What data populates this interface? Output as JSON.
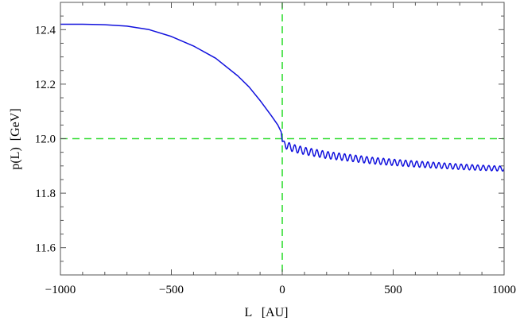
{
  "chart_data": {
    "type": "line",
    "xlabel": "L   [AU]",
    "ylabel": "p(L)  [GeV]",
    "xlim": [
      -1000,
      1000
    ],
    "ylim": [
      11.5,
      12.5
    ],
    "x_ticks": [
      -1000,
      -500,
      0,
      500,
      1000
    ],
    "x_tick_labels": [
      "−1000",
      "−500",
      "0",
      "500",
      "1000"
    ],
    "y_ticks": [
      11.6,
      11.8,
      12.0,
      12.2,
      12.4
    ],
    "y_tick_labels": [
      "11.6",
      "11.8",
      "12.0",
      "12.2",
      "12.4"
    ],
    "reference_lines": {
      "vertical_x": 0,
      "horizontal_y": 12.0,
      "color": "#33dd33",
      "style": "dashed"
    },
    "series": [
      {
        "color": "#1111dd",
        "points": [
          [
            -1000,
            12.42
          ],
          [
            -900,
            12.42
          ],
          [
            -800,
            12.418
          ],
          [
            -700,
            12.413
          ],
          [
            -600,
            12.4
          ],
          [
            -500,
            12.375
          ],
          [
            -400,
            12.34
          ],
          [
            -300,
            12.295
          ],
          [
            -200,
            12.23
          ],
          [
            -150,
            12.19
          ],
          [
            -100,
            12.14
          ],
          [
            -50,
            12.085
          ],
          [
            -20,
            12.05
          ],
          [
            -5,
            12.025
          ],
          [
            0,
            11.99
          ],
          [
            20,
            11.975
          ],
          [
            50,
            11.965
          ],
          [
            100,
            11.955
          ],
          [
            200,
            11.94
          ],
          [
            300,
            11.93
          ],
          [
            400,
            11.92
          ],
          [
            500,
            11.913
          ],
          [
            600,
            11.907
          ],
          [
            700,
            11.902
          ],
          [
            800,
            11.897
          ],
          [
            900,
            11.893
          ],
          [
            1000,
            11.89
          ]
        ],
        "oscillation": {
          "x_from": 0,
          "x_to": 1000,
          "period": 25,
          "amplitude_start": 0.014,
          "amplitude_end": 0.009
        }
      }
    ]
  }
}
